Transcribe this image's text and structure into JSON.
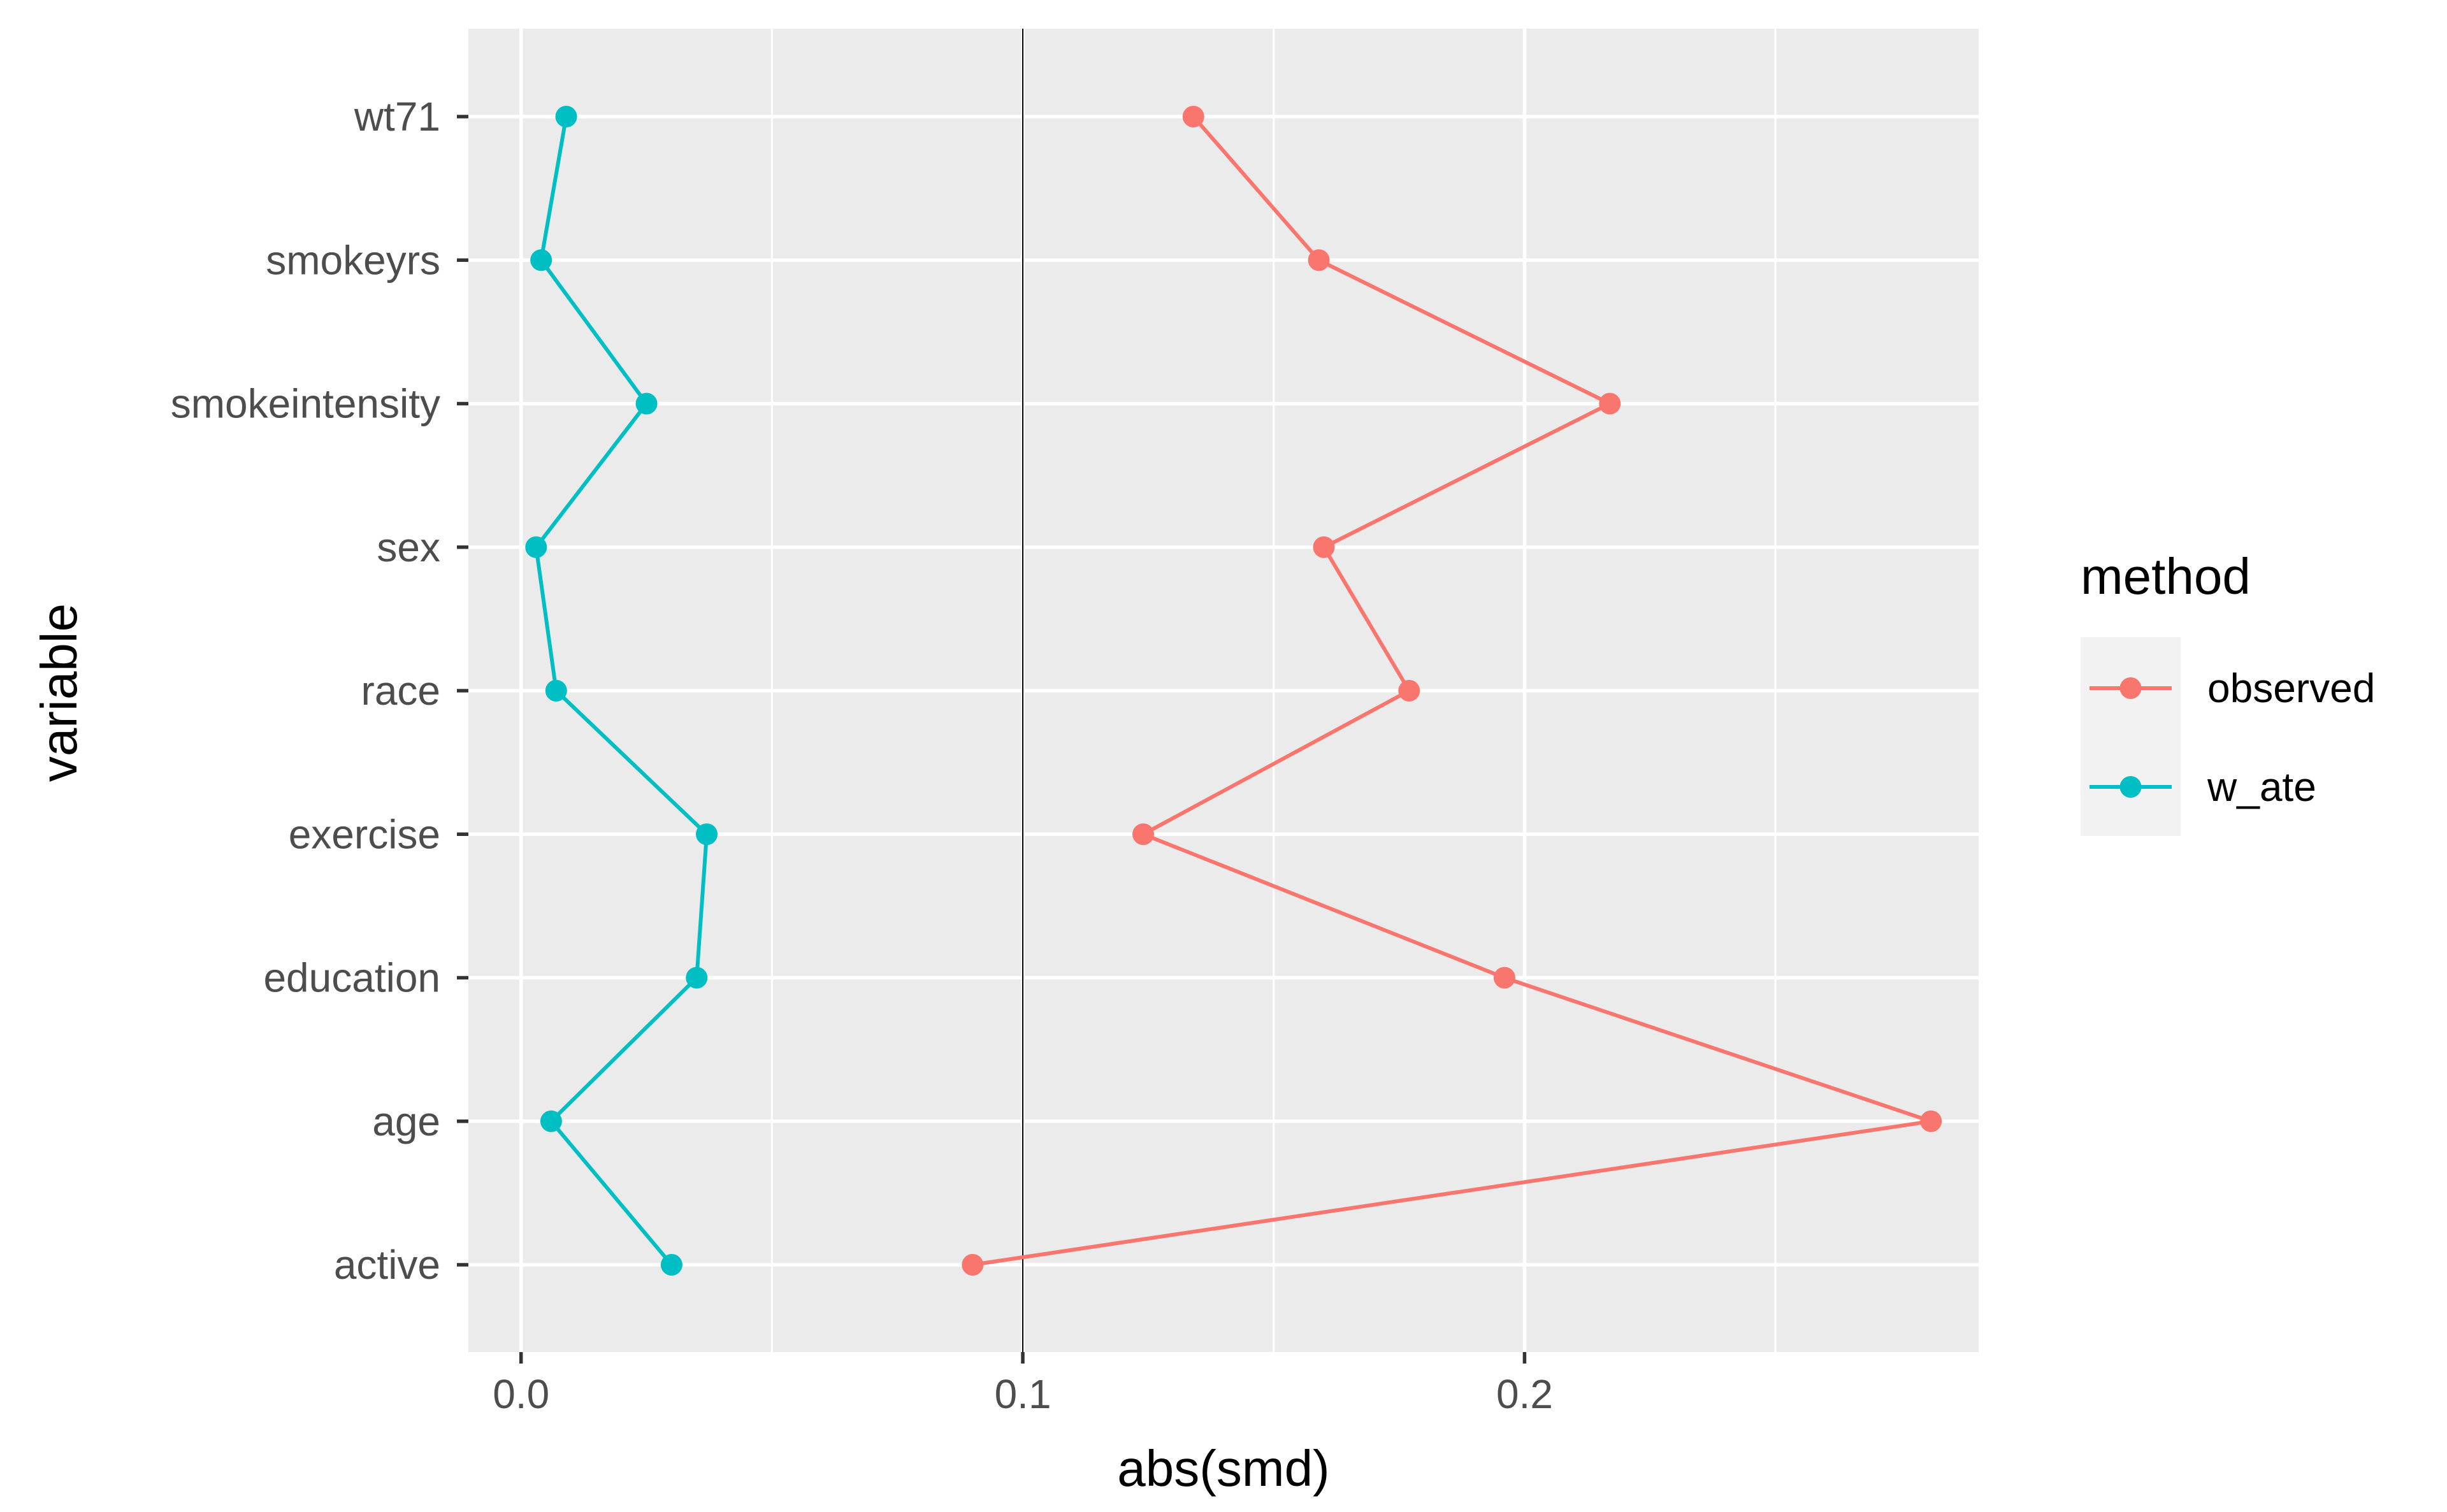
{
  "chart_data": {
    "type": "line",
    "xlabel": "abs(smd)",
    "ylabel": "variable",
    "categories": [
      "active",
      "age",
      "education",
      "exercise",
      "race",
      "sex",
      "smokeintensity",
      "smokeyrs",
      "wt71"
    ],
    "xlim": [
      -0.0105,
      0.2905
    ],
    "x_ticks": [
      0.0,
      0.1,
      0.2
    ],
    "x_tick_labels": [
      "0.0",
      "0.1",
      "0.2"
    ],
    "x_minor_ticks": [
      0.05,
      0.15,
      0.25
    ],
    "reference_line_x": 0.1,
    "grid": true,
    "series": [
      {
        "name": "observed",
        "color": "#F8766D",
        "values": [
          0.09,
          0.281,
          0.196,
          0.124,
          0.177,
          0.16,
          0.217,
          0.159,
          0.134
        ]
      },
      {
        "name": "w_ate",
        "color": "#00BFC4",
        "values": [
          0.03,
          0.006,
          0.035,
          0.037,
          0.007,
          0.003,
          0.025,
          0.004,
          0.009
        ]
      }
    ],
    "legend": {
      "title": "method",
      "position": "right"
    }
  }
}
